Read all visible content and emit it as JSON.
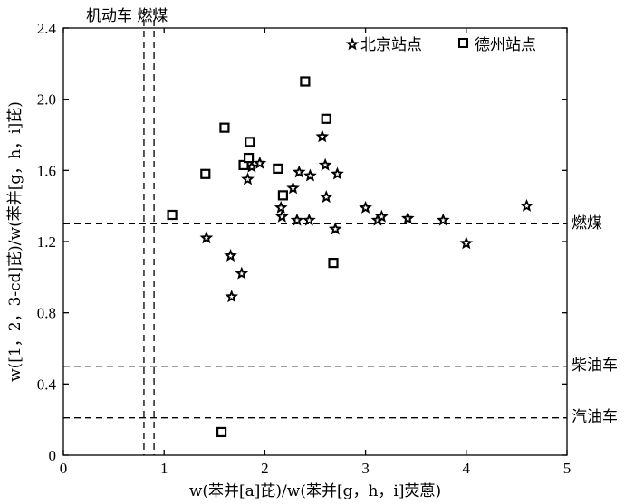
{
  "chart_data": {
    "type": "scatter",
    "xlabel": "w(苯并[a]芘)/w(苯并[g，h，i]荧蒽)",
    "ylabel": "w([1，2，3-cd]芘)/w(苯并[g，h，i]芘)",
    "xlim": [
      0,
      5
    ],
    "ylim": [
      0,
      2.4
    ],
    "x_ticks": [
      "0",
      "1",
      "2",
      "3",
      "4",
      "5"
    ],
    "y_ticks": [
      "0",
      "0.4",
      "0.8",
      "1.2",
      "1.6",
      "2.0",
      "2.4"
    ],
    "legend_position": "top-right",
    "reference_lines": {
      "horizontal": [
        {
          "label": "燃煤",
          "y": 1.3
        },
        {
          "label": "柴油车",
          "y": 0.5
        },
        {
          "label": "汽油车",
          "y": 0.21
        }
      ],
      "vertical": [
        {
          "x": 0.8
        },
        {
          "x": 0.9
        }
      ],
      "vertical_label": "机动车  燃煤"
    },
    "series": [
      {
        "name": "北京站点",
        "marker": "star",
        "points": [
          [
            1.42,
            1.22
          ],
          [
            1.66,
            1.12
          ],
          [
            1.67,
            0.89
          ],
          [
            1.77,
            1.02
          ],
          [
            1.83,
            1.55
          ],
          [
            1.87,
            1.62
          ],
          [
            1.95,
            1.64
          ],
          [
            2.16,
            1.39
          ],
          [
            2.17,
            1.34
          ],
          [
            2.28,
            1.5
          ],
          [
            2.32,
            1.32
          ],
          [
            2.34,
            1.59
          ],
          [
            2.44,
            1.32
          ],
          [
            2.45,
            1.57
          ],
          [
            2.57,
            1.79
          ],
          [
            2.6,
            1.63
          ],
          [
            2.61,
            1.45
          ],
          [
            2.7,
            1.27
          ],
          [
            2.72,
            1.58
          ],
          [
            3.0,
            1.39
          ],
          [
            3.12,
            1.32
          ],
          [
            3.16,
            1.34
          ],
          [
            3.42,
            1.33
          ],
          [
            3.77,
            1.32
          ],
          [
            4.0,
            1.19
          ],
          [
            4.6,
            1.4
          ]
        ]
      },
      {
        "name": "德州站点",
        "marker": "square",
        "points": [
          [
            1.08,
            1.35
          ],
          [
            1.41,
            1.58
          ],
          [
            1.57,
            0.13
          ],
          [
            1.6,
            1.84
          ],
          [
            1.79,
            1.63
          ],
          [
            1.84,
            1.67
          ],
          [
            1.85,
            1.76
          ],
          [
            2.13,
            1.61
          ],
          [
            2.18,
            1.46
          ],
          [
            2.4,
            2.1
          ],
          [
            2.61,
            1.89
          ],
          [
            2.68,
            1.08
          ]
        ]
      }
    ]
  }
}
